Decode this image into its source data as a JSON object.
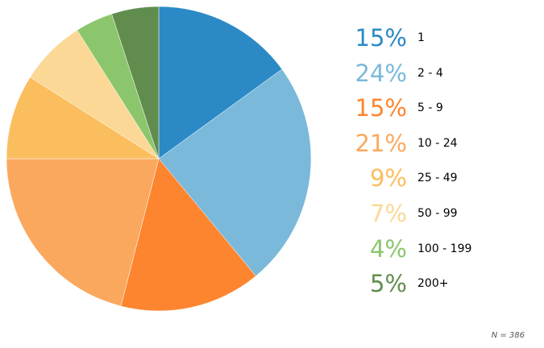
{
  "chart_data": {
    "type": "pie",
    "start_angle_deg": 0,
    "direction": "clockwise",
    "slices": [
      {
        "label": "1",
        "pct_label": "15%",
        "value": 15,
        "color": "#2b8ac6"
      },
      {
        "label": "2 - 4",
        "pct_label": "24%",
        "value": 24,
        "color": "#7ab9da"
      },
      {
        "label": "5 - 9",
        "pct_label": "15%",
        "value": 15,
        "color": "#fd8530"
      },
      {
        "label": "10 - 24",
        "pct_label": "21%",
        "value": 21,
        "color": "#fba85f"
      },
      {
        "label": "25 - 49",
        "pct_label": "9%",
        "value": 9,
        "color": "#fbbe5f"
      },
      {
        "label": "50 - 99",
        "pct_label": "7%",
        "value": 7,
        "color": "#fbd896"
      },
      {
        "label": "100 - 199",
        "pct_label": "4%",
        "value": 4,
        "color": "#8cc66c"
      },
      {
        "label": "200+",
        "pct_label": "5%",
        "value": 5,
        "color": "#608d4d"
      }
    ],
    "legend_placement": "right",
    "footnote": "N = 386"
  }
}
